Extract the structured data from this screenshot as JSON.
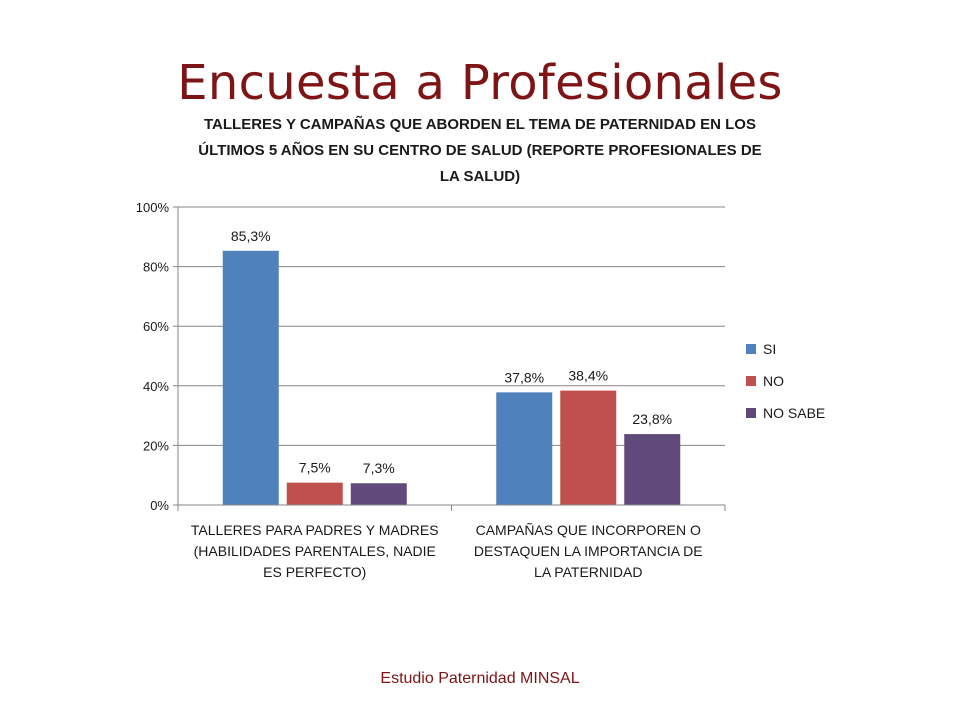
{
  "slide": {
    "title": "Encuesta a Profesionales",
    "footer": "Estudio Paternidad MINSAL"
  },
  "chart_data": {
    "type": "bar",
    "title": "TALLERES Y CAMPAÑAS QUE ABORDEN EL TEMA DE PATERNIDAD EN LOS ÚLTIMOS 5 AÑOS EN SU CENTRO DE SALUD (REPORTE PROFESIONALES DE LA SALUD)",
    "categories": [
      [
        "TALLERES PARA PADRES Y MADRES",
        "(HABILIDADES PARENTALES, NADIE",
        "ES PERFECTO)"
      ],
      [
        "CAMPAÑAS QUE INCORPOREN O",
        "DESTAQUEN LA IMPORTANCIA DE",
        "LA PATERNIDAD"
      ]
    ],
    "series": [
      {
        "name": "SI",
        "color": "#4f81bd",
        "values": [
          85.3,
          37.8
        ],
        "labels": [
          "85,3%",
          "37,8%"
        ]
      },
      {
        "name": "NO",
        "color": "#c0504d",
        "values": [
          7.5,
          38.4
        ],
        "labels": [
          "7,5%",
          "38,4%"
        ]
      },
      {
        "name": "NO SABE",
        "color": "#604a7b",
        "values": [
          7.3,
          23.8
        ],
        "labels": [
          "7,3%",
          "23,8%"
        ]
      }
    ],
    "ylim": [
      0,
      100
    ],
    "yticks": [
      "0%",
      "20%",
      "40%",
      "60%",
      "80%",
      "100%"
    ],
    "grid": true,
    "legend": "right"
  }
}
